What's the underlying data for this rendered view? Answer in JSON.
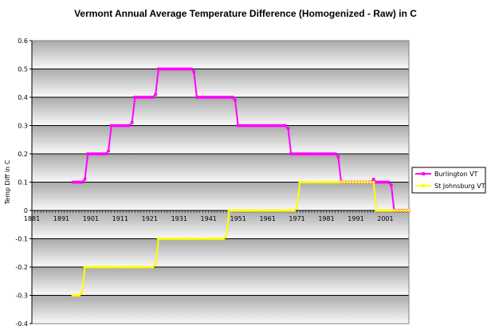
{
  "chart_data": {
    "type": "line",
    "title": "Vermont Annual Average Temperature Difference (Homogenized - Raw) in C",
    "xlabel": "",
    "ylabel": "Temp Diff in C",
    "xlim": [
      1881,
      2009
    ],
    "ylim": [
      -0.4,
      0.6
    ],
    "x_ticks": [
      "1881",
      "1891",
      "1901",
      "1911",
      "1921",
      "1931",
      "1941",
      "1951",
      "1961",
      "1971",
      "1981",
      "1991",
      "2001"
    ],
    "y_ticks": [
      "0.6",
      "0.5",
      "0.4",
      "0.3",
      "0.2",
      "0.1",
      "0",
      "-0.1",
      "-0.2",
      "-0.3",
      "-0.4"
    ],
    "series": [
      {
        "name": "Burlington VT",
        "color": "#ff00ff",
        "marker": "square",
        "points": [
          [
            1895,
            0.1
          ],
          [
            1896,
            0.1
          ],
          [
            1897,
            0.1
          ],
          [
            1898,
            0.1
          ],
          [
            1899,
            0.11
          ],
          [
            1900,
            0.2
          ],
          [
            1901,
            0.2
          ],
          [
            1902,
            0.2
          ],
          [
            1903,
            0.2
          ],
          [
            1904,
            0.2
          ],
          [
            1905,
            0.2
          ],
          [
            1906,
            0.2
          ],
          [
            1907,
            0.21
          ],
          [
            1908,
            0.3
          ],
          [
            1909,
            0.3
          ],
          [
            1910,
            0.3
          ],
          [
            1911,
            0.3
          ],
          [
            1912,
            0.3
          ],
          [
            1913,
            0.3
          ],
          [
            1914,
            0.3
          ],
          [
            1915,
            0.31
          ],
          [
            1916,
            0.4
          ],
          [
            1917,
            0.4
          ],
          [
            1918,
            0.4
          ],
          [
            1919,
            0.4
          ],
          [
            1920,
            0.4
          ],
          [
            1921,
            0.4
          ],
          [
            1922,
            0.4
          ],
          [
            1923,
            0.41
          ],
          [
            1924,
            0.5
          ],
          [
            1925,
            0.5
          ],
          [
            1926,
            0.5
          ],
          [
            1927,
            0.5
          ],
          [
            1928,
            0.5
          ],
          [
            1929,
            0.5
          ],
          [
            1930,
            0.5
          ],
          [
            1931,
            0.5
          ],
          [
            1932,
            0.5
          ],
          [
            1933,
            0.5
          ],
          [
            1934,
            0.5
          ],
          [
            1935,
            0.5
          ],
          [
            1936,
            0.49
          ],
          [
            1937,
            0.4
          ],
          [
            1938,
            0.4
          ],
          [
            1939,
            0.4
          ],
          [
            1940,
            0.4
          ],
          [
            1941,
            0.4
          ],
          [
            1942,
            0.4
          ],
          [
            1943,
            0.4
          ],
          [
            1944,
            0.4
          ],
          [
            1945,
            0.4
          ],
          [
            1946,
            0.4
          ],
          [
            1947,
            0.4
          ],
          [
            1948,
            0.4
          ],
          [
            1949,
            0.4
          ],
          [
            1950,
            0.39
          ],
          [
            1951,
            0.3
          ],
          [
            1952,
            0.3
          ],
          [
            1953,
            0.3
          ],
          [
            1954,
            0.3
          ],
          [
            1955,
            0.3
          ],
          [
            1956,
            0.3
          ],
          [
            1957,
            0.3
          ],
          [
            1958,
            0.3
          ],
          [
            1959,
            0.3
          ],
          [
            1960,
            0.3
          ],
          [
            1961,
            0.3
          ],
          [
            1962,
            0.3
          ],
          [
            1963,
            0.3
          ],
          [
            1964,
            0.3
          ],
          [
            1965,
            0.3
          ],
          [
            1966,
            0.3
          ],
          [
            1967,
            0.3
          ],
          [
            1968,
            0.29
          ],
          [
            1969,
            0.2
          ],
          [
            1970,
            0.2
          ],
          [
            1971,
            0.2
          ],
          [
            1972,
            0.2
          ],
          [
            1973,
            0.2
          ],
          [
            1974,
            0.2
          ],
          [
            1975,
            0.2
          ],
          [
            1976,
            0.2
          ],
          [
            1977,
            0.2
          ],
          [
            1978,
            0.2
          ],
          [
            1979,
            0.2
          ],
          [
            1980,
            0.2
          ],
          [
            1981,
            0.2
          ],
          [
            1982,
            0.2
          ],
          [
            1983,
            0.2
          ],
          [
            1984,
            0.2
          ],
          [
            1985,
            0.19
          ],
          [
            1986,
            0.1
          ],
          [
            1987,
            0.1
          ],
          [
            1988,
            0.1
          ],
          [
            1989,
            0.1
          ],
          [
            1990,
            0.1
          ],
          [
            1991,
            0.1
          ],
          [
            1992,
            0.1
          ],
          [
            1993,
            0.1
          ],
          [
            1994,
            0.1
          ],
          [
            1995,
            0.1
          ],
          [
            1996,
            0.1
          ],
          [
            1997,
            0.11
          ],
          [
            1998,
            0.1
          ],
          [
            1999,
            0.1
          ],
          [
            2000,
            0.1
          ],
          [
            2001,
            0.1
          ],
          [
            2002,
            0.1
          ],
          [
            2003,
            0.09
          ],
          [
            2004,
            0.0
          ],
          [
            2005,
            0.0
          ],
          [
            2006,
            0.0
          ],
          [
            2007,
            0.0
          ],
          [
            2008,
            0.0
          ],
          [
            2009,
            0.0
          ]
        ]
      },
      {
        "name": "St Johnsburg VT",
        "color": "#ffff00",
        "marker": "diamond",
        "points": [
          [
            1895,
            -0.3
          ],
          [
            1896,
            -0.3
          ],
          [
            1897,
            -0.3
          ],
          [
            1898,
            -0.29
          ],
          [
            1899,
            -0.2
          ],
          [
            1900,
            -0.2
          ],
          [
            1901,
            -0.2
          ],
          [
            1902,
            -0.2
          ],
          [
            1903,
            -0.2
          ],
          [
            1904,
            -0.2
          ],
          [
            1905,
            -0.2
          ],
          [
            1906,
            -0.2
          ],
          [
            1907,
            -0.2
          ],
          [
            1908,
            -0.2
          ],
          [
            1909,
            -0.2
          ],
          [
            1910,
            -0.2
          ],
          [
            1911,
            -0.2
          ],
          [
            1912,
            -0.2
          ],
          [
            1913,
            -0.2
          ],
          [
            1914,
            -0.2
          ],
          [
            1915,
            -0.2
          ],
          [
            1916,
            -0.2
          ],
          [
            1917,
            -0.2
          ],
          [
            1918,
            -0.2
          ],
          [
            1919,
            -0.2
          ],
          [
            1920,
            -0.2
          ],
          [
            1921,
            -0.2
          ],
          [
            1922,
            -0.2
          ],
          [
            1923,
            -0.19
          ],
          [
            1924,
            -0.1
          ],
          [
            1925,
            -0.1
          ],
          [
            1926,
            -0.1
          ],
          [
            1927,
            -0.1
          ],
          [
            1928,
            -0.1
          ],
          [
            1929,
            -0.1
          ],
          [
            1930,
            -0.1
          ],
          [
            1931,
            -0.1
          ],
          [
            1932,
            -0.1
          ],
          [
            1933,
            -0.1
          ],
          [
            1934,
            -0.1
          ],
          [
            1935,
            -0.1
          ],
          [
            1936,
            -0.1
          ],
          [
            1937,
            -0.1
          ],
          [
            1938,
            -0.1
          ],
          [
            1939,
            -0.1
          ],
          [
            1940,
            -0.1
          ],
          [
            1941,
            -0.1
          ],
          [
            1942,
            -0.1
          ],
          [
            1943,
            -0.1
          ],
          [
            1944,
            -0.1
          ],
          [
            1945,
            -0.1
          ],
          [
            1946,
            -0.1
          ],
          [
            1947,
            -0.09
          ],
          [
            1948,
            0.0
          ],
          [
            1949,
            0.0
          ],
          [
            1950,
            0.0
          ],
          [
            1951,
            0.0
          ],
          [
            1952,
            0.0
          ],
          [
            1953,
            0.0
          ],
          [
            1954,
            0.0
          ],
          [
            1955,
            0.0
          ],
          [
            1956,
            0.0
          ],
          [
            1957,
            0.0
          ],
          [
            1958,
            0.0
          ],
          [
            1959,
            0.0
          ],
          [
            1960,
            0.0
          ],
          [
            1961,
            0.0
          ],
          [
            1962,
            0.0
          ],
          [
            1963,
            0.0
          ],
          [
            1964,
            0.0
          ],
          [
            1965,
            0.0
          ],
          [
            1966,
            0.0
          ],
          [
            1967,
            0.0
          ],
          [
            1968,
            0.0
          ],
          [
            1969,
            0.0
          ],
          [
            1970,
            0.0
          ],
          [
            1971,
            0.01
          ],
          [
            1972,
            0.1
          ],
          [
            1973,
            0.1
          ],
          [
            1974,
            0.1
          ],
          [
            1975,
            0.1
          ],
          [
            1976,
            0.1
          ],
          [
            1977,
            0.1
          ],
          [
            1978,
            0.1
          ],
          [
            1979,
            0.1
          ],
          [
            1980,
            0.1
          ],
          [
            1981,
            0.1
          ],
          [
            1982,
            0.1
          ],
          [
            1983,
            0.1
          ],
          [
            1984,
            0.1
          ],
          [
            1985,
            0.1
          ],
          [
            1986,
            0.1
          ],
          [
            1987,
            0.1
          ],
          [
            1988,
            0.1
          ],
          [
            1989,
            0.1
          ],
          [
            1990,
            0.1
          ],
          [
            1991,
            0.1
          ],
          [
            1992,
            0.1
          ],
          [
            1993,
            0.1
          ],
          [
            1994,
            0.1
          ],
          [
            1995,
            0.1
          ],
          [
            1996,
            0.1
          ],
          [
            1997,
            0.1
          ],
          [
            1998,
            0.0
          ],
          [
            1999,
            0.0
          ],
          [
            2000,
            0.0
          ],
          [
            2001,
            0.0
          ],
          [
            2002,
            0.0
          ],
          [
            2003,
            0.0
          ],
          [
            2004,
            0.0
          ],
          [
            2005,
            0.0
          ],
          [
            2006,
            0.0
          ],
          [
            2007,
            0.0
          ],
          [
            2008,
            0.0
          ],
          [
            2009,
            0.0
          ]
        ]
      }
    ],
    "legend_position": "right",
    "grid": true
  }
}
